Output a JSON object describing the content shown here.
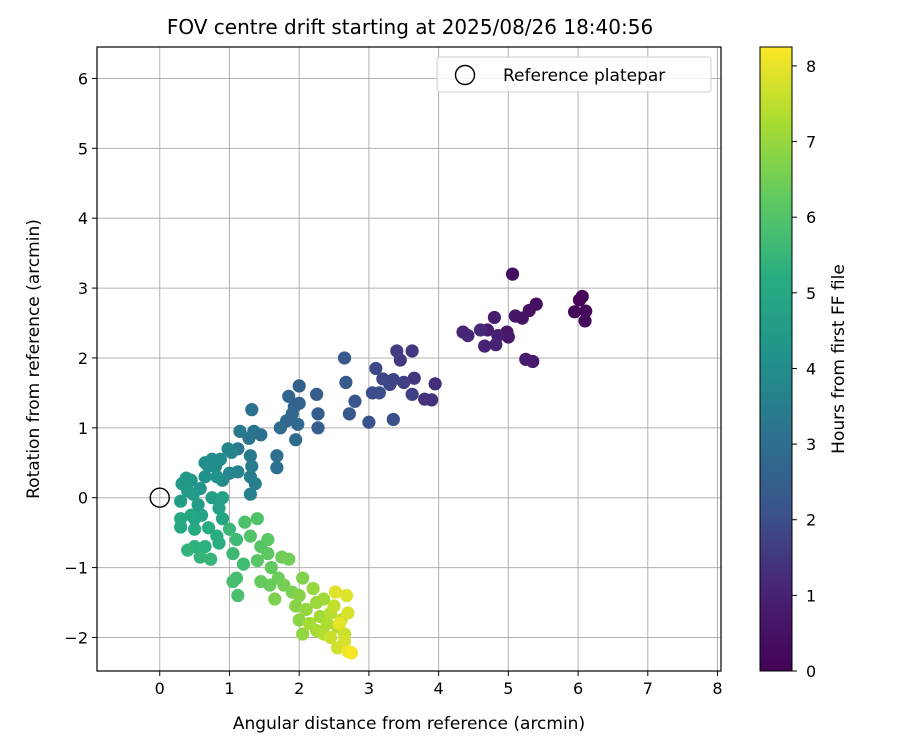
{
  "chart_data": {
    "type": "scatter",
    "title": "FOV centre drift starting at 2025/08/26 18:40:56",
    "xlabel": "Angular distance from reference (arcmin)",
    "ylabel": "Rotation from reference (arcmin)",
    "xlim": [
      -0.9,
      8.05
    ],
    "ylim": [
      -2.48,
      6.45
    ],
    "xticks": [
      0,
      1,
      2,
      3,
      4,
      5,
      6,
      7,
      8
    ],
    "yticks": [
      -2,
      -1,
      0,
      1,
      2,
      3,
      4,
      5,
      6
    ],
    "grid": true,
    "legend": {
      "placement": "upper right",
      "entries": [
        "Reference platepar"
      ]
    },
    "reference_point": {
      "x": 0,
      "y": 0,
      "label": "Reference platepar"
    },
    "colorbar": {
      "label": "Hours from first FF file",
      "range": [
        0,
        8.25
      ],
      "ticks": [
        0,
        1,
        2,
        3,
        4,
        5,
        6,
        7,
        8
      ],
      "colormap": "viridis"
    },
    "points": [
      [
        6.06,
        2.88,
        0.1
      ],
      [
        6.02,
        2.83,
        0.15
      ],
      [
        6.11,
        2.67,
        0.2
      ],
      [
        5.95,
        2.66,
        0.25
      ],
      [
        6.1,
        2.53,
        0.3
      ],
      [
        5.06,
        3.2,
        0.4
      ],
      [
        5.4,
        2.77,
        0.45
      ],
      [
        5.3,
        2.68,
        0.5
      ],
      [
        5.2,
        2.57,
        0.55
      ],
      [
        5.1,
        2.6,
        0.6
      ],
      [
        4.98,
        2.37,
        0.65
      ],
      [
        5.0,
        2.3,
        0.7
      ],
      [
        5.35,
        1.95,
        0.75
      ],
      [
        5.25,
        1.98,
        0.8
      ],
      [
        4.8,
        2.58,
        0.85
      ],
      [
        4.7,
        2.4,
        0.9
      ],
      [
        4.85,
        2.32,
        0.95
      ],
      [
        4.66,
        2.17,
        1.0
      ],
      [
        4.82,
        2.19,
        1.05
      ],
      [
        4.35,
        2.37,
        1.1
      ],
      [
        4.42,
        2.32,
        1.15
      ],
      [
        4.6,
        2.4,
        1.2
      ],
      [
        3.95,
        1.63,
        1.3
      ],
      [
        3.9,
        1.4,
        1.35
      ],
      [
        3.8,
        1.41,
        1.4
      ],
      [
        3.65,
        1.71,
        1.45
      ],
      [
        3.62,
        2.1,
        1.5
      ],
      [
        3.45,
        1.97,
        1.55
      ],
      [
        3.4,
        2.1,
        1.6
      ],
      [
        3.5,
        1.65,
        1.65
      ],
      [
        3.62,
        1.48,
        1.7
      ],
      [
        3.35,
        1.69,
        1.75
      ],
      [
        3.3,
        1.62,
        1.8
      ],
      [
        3.2,
        1.7,
        1.85
      ],
      [
        3.1,
        1.85,
        1.9
      ],
      [
        3.05,
        1.5,
        1.95
      ],
      [
        3.15,
        1.5,
        2.0
      ],
      [
        3.35,
        1.12,
        2.05
      ],
      [
        3.0,
        1.08,
        2.1
      ],
      [
        2.8,
        1.38,
        2.2
      ],
      [
        2.72,
        1.2,
        2.25
      ],
      [
        2.65,
        2.0,
        2.3
      ],
      [
        2.67,
        1.65,
        2.35
      ],
      [
        2.25,
        1.48,
        2.4
      ],
      [
        2.27,
        1.2,
        2.45
      ],
      [
        2.27,
        1.0,
        2.5
      ],
      [
        2.0,
        1.6,
        2.55
      ],
      [
        2.0,
        1.35,
        2.6
      ],
      [
        1.93,
        1.3,
        2.65
      ],
      [
        1.85,
        1.45,
        2.7
      ],
      [
        1.9,
        1.2,
        2.75
      ],
      [
        1.82,
        1.1,
        2.8
      ],
      [
        1.98,
        1.05,
        2.85
      ],
      [
        1.95,
        0.83,
        2.9
      ],
      [
        1.73,
        1.0,
        2.95
      ],
      [
        1.68,
        0.6,
        3.0
      ],
      [
        1.68,
        0.43,
        3.05
      ],
      [
        1.32,
        1.26,
        3.1
      ],
      [
        1.45,
        0.9,
        3.15
      ],
      [
        1.35,
        0.95,
        3.2
      ],
      [
        1.28,
        0.85,
        3.25
      ],
      [
        1.15,
        0.95,
        3.3
      ],
      [
        1.12,
        0.7,
        3.35
      ],
      [
        1.3,
        0.6,
        3.4
      ],
      [
        1.32,
        0.45,
        3.45
      ],
      [
        1.3,
        0.3,
        3.5
      ],
      [
        1.37,
        0.2,
        3.55
      ],
      [
        1.3,
        0.05,
        3.6
      ],
      [
        1.12,
        0.37,
        3.65
      ],
      [
        1.03,
        0.65,
        3.7
      ],
      [
        0.98,
        0.7,
        3.75
      ],
      [
        1.0,
        0.35,
        3.8
      ],
      [
        0.9,
        0.25,
        3.85
      ],
      [
        0.8,
        0.45,
        3.9
      ],
      [
        0.87,
        0.55,
        3.95
      ],
      [
        0.75,
        0.55,
        4.0
      ],
      [
        0.7,
        0.45,
        4.05
      ],
      [
        0.65,
        0.5,
        4.1
      ],
      [
        0.82,
        0.3,
        4.15
      ],
      [
        0.65,
        0.3,
        4.2
      ],
      [
        0.58,
        0.13,
        4.25
      ],
      [
        0.45,
        0.25,
        4.3
      ],
      [
        0.38,
        0.28,
        4.35
      ],
      [
        0.32,
        0.2,
        4.4
      ],
      [
        0.4,
        0.1,
        4.45
      ],
      [
        0.48,
        0.05,
        4.5
      ],
      [
        0.55,
        -0.1,
        4.55
      ],
      [
        0.3,
        -0.05,
        4.6
      ],
      [
        0.75,
        0.0,
        4.65
      ],
      [
        0.9,
        0.0,
        4.7
      ],
      [
        0.85,
        -0.15,
        4.75
      ],
      [
        0.9,
        -0.3,
        4.8
      ],
      [
        0.6,
        -0.25,
        4.85
      ],
      [
        0.5,
        -0.3,
        4.9
      ],
      [
        0.45,
        -0.25,
        4.95
      ],
      [
        0.3,
        -0.3,
        5.0
      ],
      [
        0.3,
        -0.42,
        5.05
      ],
      [
        0.5,
        -0.45,
        5.1
      ],
      [
        0.7,
        -0.43,
        5.15
      ],
      [
        0.82,
        -0.55,
        5.2
      ],
      [
        0.85,
        -0.65,
        5.25
      ],
      [
        0.65,
        -0.7,
        5.3
      ],
      [
        0.5,
        -0.7,
        5.35
      ],
      [
        0.4,
        -0.75,
        5.4
      ],
      [
        0.58,
        -0.85,
        5.45
      ],
      [
        0.73,
        -0.88,
        5.5
      ],
      [
        1.0,
        -0.45,
        5.55
      ],
      [
        1.1,
        -0.6,
        5.6
      ],
      [
        1.05,
        -0.8,
        5.65
      ],
      [
        1.2,
        -0.95,
        5.7
      ],
      [
        1.1,
        -1.15,
        5.75
      ],
      [
        1.05,
        -1.2,
        5.8
      ],
      [
        1.12,
        -1.4,
        5.85
      ],
      [
        1.22,
        -0.35,
        5.9
      ],
      [
        1.4,
        -0.3,
        5.95
      ],
      [
        1.3,
        -0.55,
        6.0
      ],
      [
        1.45,
        -0.7,
        6.05
      ],
      [
        1.4,
        -0.9,
        6.1
      ],
      [
        1.55,
        -0.6,
        6.15
      ],
      [
        1.55,
        -0.8,
        6.2
      ],
      [
        1.6,
        -1.0,
        6.25
      ],
      [
        1.45,
        -1.2,
        6.3
      ],
      [
        1.58,
        -1.25,
        6.35
      ],
      [
        1.7,
        -1.15,
        6.4
      ],
      [
        1.75,
        -0.85,
        6.45
      ],
      [
        1.85,
        -0.88,
        6.5
      ],
      [
        1.78,
        -1.25,
        6.55
      ],
      [
        1.9,
        -1.35,
        6.6
      ],
      [
        1.65,
        -1.45,
        6.65
      ],
      [
        2.05,
        -1.15,
        6.7
      ],
      [
        2.0,
        -1.4,
        6.75
      ],
      [
        1.95,
        -1.55,
        6.8
      ],
      [
        2.0,
        -1.75,
        6.85
      ],
      [
        2.05,
        -1.95,
        6.9
      ],
      [
        2.1,
        -1.6,
        6.95
      ],
      [
        2.2,
        -1.3,
        7.0
      ],
      [
        2.25,
        -1.5,
        7.05
      ],
      [
        2.35,
        -1.45,
        7.1
      ],
      [
        2.3,
        -1.7,
        7.15
      ],
      [
        2.15,
        -1.8,
        7.2
      ],
      [
        2.25,
        -1.9,
        7.25
      ],
      [
        2.4,
        -1.8,
        7.3
      ],
      [
        2.35,
        -1.95,
        7.35
      ],
      [
        2.45,
        -1.65,
        7.4
      ],
      [
        2.55,
        -1.85,
        7.45
      ],
      [
        2.6,
        -1.75,
        7.5
      ],
      [
        2.5,
        -1.55,
        7.55
      ],
      [
        2.65,
        -1.95,
        7.6
      ],
      [
        2.45,
        -2.0,
        7.65
      ],
      [
        2.55,
        -2.15,
        7.7
      ],
      [
        2.65,
        -2.05,
        7.75
      ],
      [
        2.7,
        -1.65,
        7.8
      ],
      [
        2.68,
        -1.4,
        7.85
      ],
      [
        2.52,
        -1.35,
        7.9
      ],
      [
        2.58,
        -1.8,
        7.95
      ],
      [
        2.7,
        -2.2,
        8.05
      ],
      [
        2.75,
        -2.22,
        8.15
      ]
    ]
  }
}
